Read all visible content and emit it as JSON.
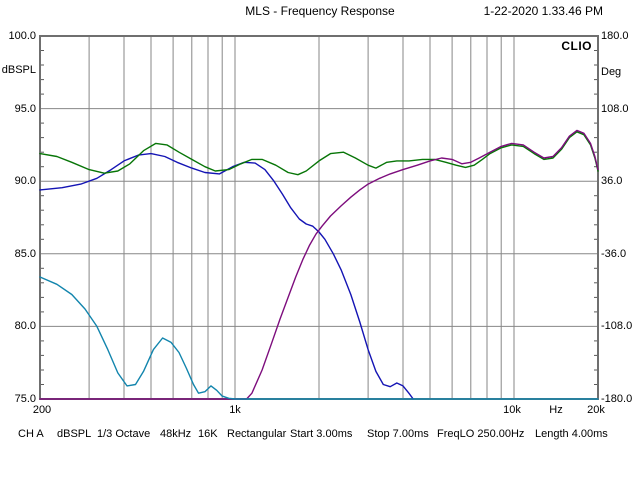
{
  "window": {
    "title": "MLS - Frequency Response",
    "timestamp": "1-22-2020 1.33.46 PM",
    "brand": "CLIO"
  },
  "axes": {
    "left": {
      "unit": "dBSPL",
      "labels": [
        "100.0",
        "95.0",
        "90.0",
        "85.0",
        "80.0",
        "75.0"
      ]
    },
    "right": {
      "unit": "Deg",
      "labels": [
        "180.0",
        "108.0",
        "36.0",
        "-36.0",
        "-108.0",
        "-180.0"
      ]
    },
    "bottom": {
      "unit": "Hz",
      "labels": [
        "200",
        "1k",
        "10k",
        "20k"
      ]
    }
  },
  "status_bar": {
    "items": [
      "CH A",
      "dBSPL",
      "1/3 Octave",
      "48kHz",
      "16K",
      "Rectangular",
      "Start 3.00ms",
      "Stop 7.00ms",
      "FreqLO 250.00Hz",
      "Length 4.00ms"
    ]
  },
  "colors": {
    "grid": "#878787",
    "frame": "#6f6f6f",
    "tick": "#5a5a5a"
  },
  "chart_data": {
    "type": "line",
    "title": "MLS - Frequency Response",
    "xlabel": "Hz",
    "ylabel_left": "dBSPL",
    "ylabel_right": "Deg",
    "x_scale": "log",
    "x_range": [
      200,
      20000
    ],
    "y_left_range": [
      75,
      100
    ],
    "y_right_range": [
      -180,
      180
    ],
    "y_major_step": 5,
    "grid": true,
    "legend": "none",
    "series": [
      {
        "name": "woofer-lowpass-blue",
        "color": "#1414b4",
        "points": [
          [
            200,
            89.4
          ],
          [
            240,
            89.55
          ],
          [
            280,
            89.8
          ],
          [
            320,
            90.2
          ],
          [
            360,
            90.8
          ],
          [
            400,
            91.4
          ],
          [
            450,
            91.8
          ],
          [
            500,
            91.9
          ],
          [
            560,
            91.7
          ],
          [
            620,
            91.3
          ],
          [
            700,
            90.9
          ],
          [
            780,
            90.6
          ],
          [
            880,
            90.5
          ],
          [
            980,
            91.0
          ],
          [
            1080,
            91.3
          ],
          [
            1180,
            91.25
          ],
          [
            1280,
            90.8
          ],
          [
            1380,
            90.0
          ],
          [
            1480,
            89.1
          ],
          [
            1580,
            88.2
          ],
          [
            1700,
            87.4
          ],
          [
            1800,
            87.05
          ],
          [
            1900,
            86.9
          ],
          [
            2000,
            86.5
          ],
          [
            2100,
            86.0
          ],
          [
            2250,
            85.0
          ],
          [
            2400,
            83.9
          ],
          [
            2600,
            82.2
          ],
          [
            2800,
            80.3
          ],
          [
            3000,
            78.4
          ],
          [
            3200,
            76.9
          ],
          [
            3400,
            76.0
          ],
          [
            3600,
            75.85
          ],
          [
            3800,
            76.1
          ],
          [
            4000,
            75.9
          ],
          [
            4200,
            75.4
          ],
          [
            4350,
            75.0
          ]
        ]
      },
      {
        "name": "summed-response-green",
        "color": "#077507",
        "points": [
          [
            200,
            91.9
          ],
          [
            230,
            91.7
          ],
          [
            260,
            91.3
          ],
          [
            300,
            90.8
          ],
          [
            340,
            90.55
          ],
          [
            380,
            90.7
          ],
          [
            420,
            91.2
          ],
          [
            470,
            92.1
          ],
          [
            520,
            92.6
          ],
          [
            570,
            92.5
          ],
          [
            630,
            92.0
          ],
          [
            700,
            91.5
          ],
          [
            780,
            91.0
          ],
          [
            850,
            90.7
          ],
          [
            950,
            90.8
          ],
          [
            1050,
            91.2
          ],
          [
            1150,
            91.5
          ],
          [
            1250,
            91.5
          ],
          [
            1400,
            91.1
          ],
          [
            1550,
            90.6
          ],
          [
            1680,
            90.45
          ],
          [
            1800,
            90.7
          ],
          [
            2000,
            91.4
          ],
          [
            2200,
            91.9
          ],
          [
            2450,
            92.0
          ],
          [
            2700,
            91.6
          ],
          [
            3000,
            91.1
          ],
          [
            3200,
            90.9
          ],
          [
            3500,
            91.3
          ],
          [
            3800,
            91.4
          ],
          [
            4200,
            91.4
          ],
          [
            4700,
            91.5
          ],
          [
            5200,
            91.5
          ],
          [
            5700,
            91.3
          ],
          [
            6200,
            91.1
          ],
          [
            6700,
            90.95
          ],
          [
            7200,
            91.1
          ],
          [
            7700,
            91.5
          ],
          [
            8200,
            91.9
          ],
          [
            9000,
            92.3
          ],
          [
            9800,
            92.5
          ],
          [
            10800,
            92.4
          ],
          [
            11800,
            91.9
          ],
          [
            12800,
            91.5
          ],
          [
            13800,
            91.6
          ],
          [
            14800,
            92.2
          ],
          [
            15800,
            93.0
          ],
          [
            16800,
            93.4
          ],
          [
            17800,
            93.2
          ],
          [
            18800,
            92.5
          ],
          [
            19500,
            91.6
          ],
          [
            20000,
            90.7
          ]
        ]
      },
      {
        "name": "tweeter-highpass-magenta",
        "color": "#7d0d7d",
        "points": [
          [
            200,
            75.0
          ],
          [
            1100,
            75.0
          ],
          [
            1150,
            75.4
          ],
          [
            1250,
            77.0
          ],
          [
            1350,
            78.8
          ],
          [
            1450,
            80.5
          ],
          [
            1550,
            82.0
          ],
          [
            1650,
            83.4
          ],
          [
            1750,
            84.6
          ],
          [
            1850,
            85.6
          ],
          [
            1950,
            86.35
          ],
          [
            2050,
            86.9
          ],
          [
            2200,
            87.6
          ],
          [
            2400,
            88.3
          ],
          [
            2600,
            88.9
          ],
          [
            2800,
            89.4
          ],
          [
            3000,
            89.8
          ],
          [
            3300,
            90.2
          ],
          [
            3600,
            90.5
          ],
          [
            4000,
            90.8
          ],
          [
            4500,
            91.1
          ],
          [
            5000,
            91.4
          ],
          [
            5500,
            91.6
          ],
          [
            6000,
            91.5
          ],
          [
            6500,
            91.2
          ],
          [
            7000,
            91.3
          ],
          [
            7500,
            91.6
          ],
          [
            8200,
            92.0
          ],
          [
            9000,
            92.4
          ],
          [
            9800,
            92.6
          ],
          [
            10800,
            92.5
          ],
          [
            11800,
            92.0
          ],
          [
            12800,
            91.6
          ],
          [
            13800,
            91.7
          ],
          [
            14800,
            92.3
          ],
          [
            15800,
            93.1
          ],
          [
            16800,
            93.5
          ],
          [
            17800,
            93.3
          ],
          [
            18800,
            92.6
          ],
          [
            19500,
            91.7
          ],
          [
            20000,
            90.8
          ]
        ]
      },
      {
        "name": "lower-trace-cyan",
        "color": "#1285ad",
        "points": [
          [
            200,
            83.4
          ],
          [
            230,
            82.9
          ],
          [
            260,
            82.2
          ],
          [
            290,
            81.2
          ],
          [
            320,
            80.0
          ],
          [
            350,
            78.4
          ],
          [
            380,
            76.8
          ],
          [
            410,
            75.9
          ],
          [
            440,
            76.0
          ],
          [
            470,
            76.9
          ],
          [
            510,
            78.4
          ],
          [
            550,
            79.2
          ],
          [
            590,
            78.9
          ],
          [
            630,
            78.2
          ],
          [
            670,
            77.1
          ],
          [
            710,
            76.0
          ],
          [
            740,
            75.4
          ],
          [
            780,
            75.5
          ],
          [
            820,
            75.9
          ],
          [
            860,
            75.6
          ],
          [
            900,
            75.2
          ],
          [
            950,
            75.05
          ],
          [
            1000,
            75.0
          ],
          [
            20000,
            75.0
          ]
        ]
      }
    ]
  }
}
